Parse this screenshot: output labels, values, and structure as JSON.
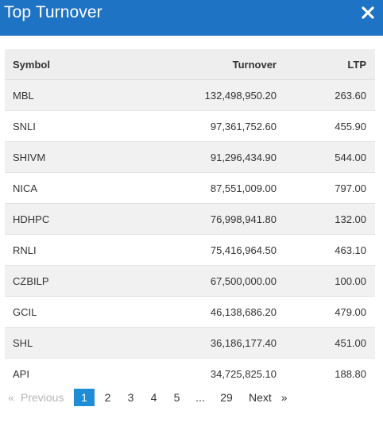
{
  "header": {
    "title": "Top Turnover",
    "accent_color": "#1f73c4",
    "close_icon": "close-icon"
  },
  "table": {
    "columns": [
      "Symbol",
      "Turnover",
      "LTP"
    ],
    "rows": [
      {
        "symbol": "MBL",
        "turnover": "132,498,950.20",
        "ltp": "263.60"
      },
      {
        "symbol": "SNLI",
        "turnover": "97,361,752.60",
        "ltp": "455.90"
      },
      {
        "symbol": "SHIVM",
        "turnover": "91,296,434.90",
        "ltp": "544.00"
      },
      {
        "symbol": "NICA",
        "turnover": "87,551,009.00",
        "ltp": "797.00"
      },
      {
        "symbol": "HDHPC",
        "turnover": "76,998,941.80",
        "ltp": "132.00"
      },
      {
        "symbol": "RNLI",
        "turnover": "75,416,964.50",
        "ltp": "463.10"
      },
      {
        "symbol": "CZBILP",
        "turnover": "67,500,000.00",
        "ltp": "100.00"
      },
      {
        "symbol": "GCIL",
        "turnover": "46,138,686.20",
        "ltp": "479.00"
      },
      {
        "symbol": "SHL",
        "turnover": "36,186,177.40",
        "ltp": "451.00"
      },
      {
        "symbol": "API",
        "turnover": "34,725,825.10",
        "ltp": "188.80"
      }
    ]
  },
  "pagination": {
    "prev_arrow": "«",
    "prev_label": "Previous",
    "pages": [
      "1",
      "2",
      "3",
      "4",
      "5",
      "...",
      "29"
    ],
    "active_page": "1",
    "next_label": "Next",
    "next_arrow": "»",
    "active_color": "#1f8dd6"
  }
}
